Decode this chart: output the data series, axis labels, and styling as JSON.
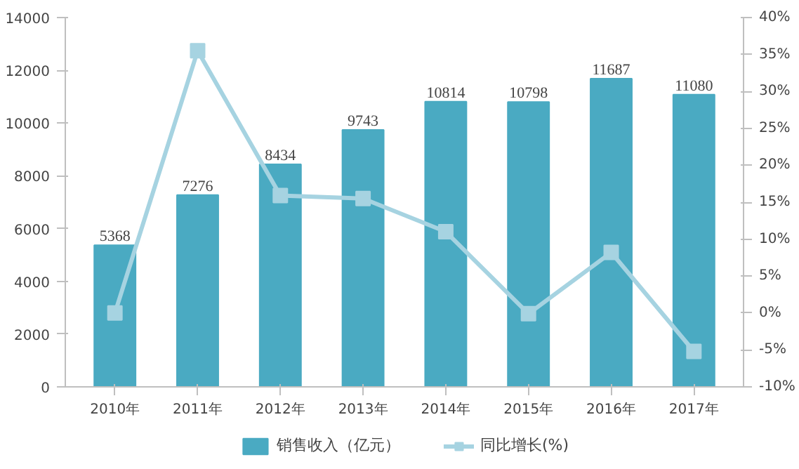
{
  "chart_data": {
    "type": "bar",
    "categories": [
      "2010年",
      "2011年",
      "2012年",
      "2013年",
      "2014年",
      "2015年",
      "2016年",
      "2017年"
    ],
    "series": [
      {
        "name": "销售收入（亿元）",
        "color": "#4aaac2",
        "values": [
          5368,
          7276,
          8434,
          9743,
          10814,
          10798,
          11687,
          11080
        ],
        "value_labels": [
          "5368",
          "7276",
          "8434",
          "9743",
          "10814",
          "10798",
          "11687",
          "11080"
        ]
      },
      {
        "name": "同比增长(%)",
        "type": "line",
        "axis": "y2",
        "color": "#a6d3e1",
        "values": [
          0,
          35.5,
          15.9,
          15.5,
          11.0,
          -0.1,
          8.2,
          -5.2
        ]
      }
    ],
    "ylim": [
      0,
      14000
    ],
    "yticks": [
      0,
      2000,
      4000,
      6000,
      8000,
      10000,
      12000,
      14000
    ],
    "y2lim": [
      -10,
      40
    ],
    "y2ticks": [
      {
        "value": -10,
        "label": "-10%"
      },
      {
        "value": -5,
        "label": "-5%"
      },
      {
        "value": 0,
        "label": "0%"
      },
      {
        "value": 5,
        "label": "5%"
      },
      {
        "value": 10,
        "label": "10%"
      },
      {
        "value": 15,
        "label": "15%"
      },
      {
        "value": 20,
        "label": "20%"
      },
      {
        "value": 25,
        "label": "25%"
      },
      {
        "value": 30,
        "label": "30%"
      },
      {
        "value": 35,
        "label": "35%"
      },
      {
        "value": 40,
        "label": "40%"
      }
    ],
    "marker": "square",
    "grid": false,
    "legend": "bottom"
  }
}
